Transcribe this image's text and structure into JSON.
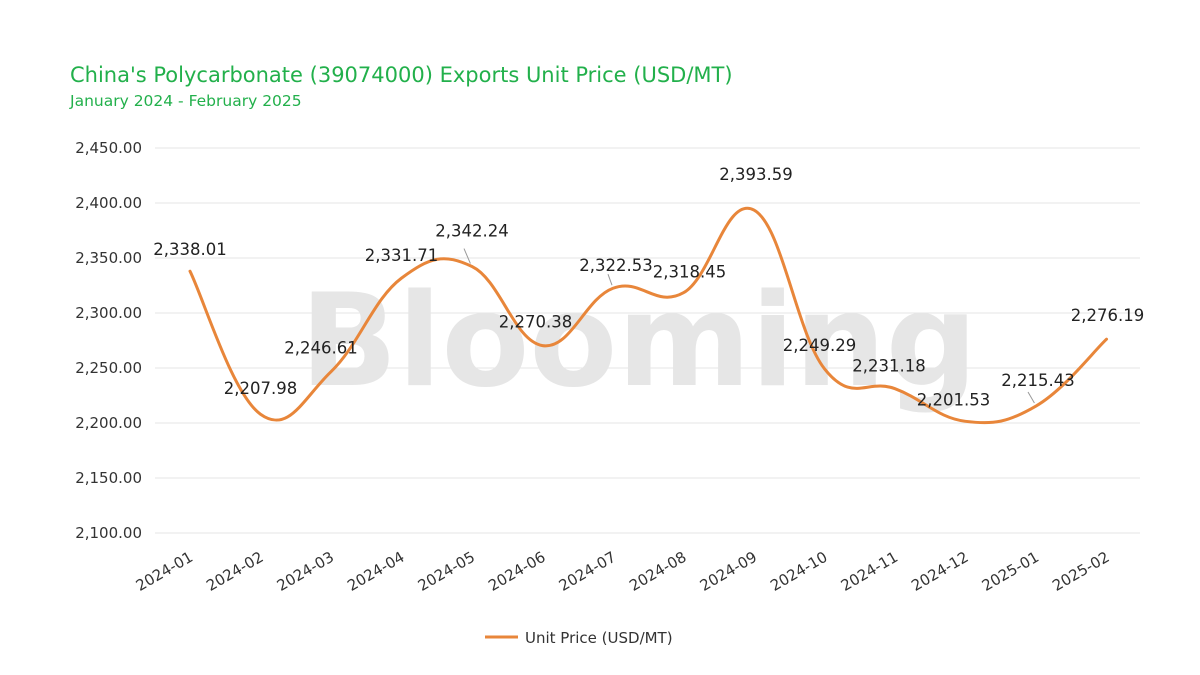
{
  "chart_data": {
    "type": "line",
    "title": "China's Polycarbonate (39074000) Exports Unit Price (USD/MT)",
    "subtitle": "January 2024 - February 2025",
    "categories": [
      "2024-01",
      "2024-02",
      "2024-03",
      "2024-04",
      "2024-05",
      "2024-06",
      "2024-07",
      "2024-08",
      "2024-09",
      "2024-10",
      "2024-11",
      "2024-12",
      "2025-01",
      "2025-02"
    ],
    "series": [
      {
        "name": "Unit Price (USD/MT)",
        "values": [
          2338.01,
          2207.98,
          2246.61,
          2331.71,
          2342.24,
          2270.38,
          2322.53,
          2318.45,
          2393.59,
          2249.29,
          2231.18,
          2201.53,
          2215.43,
          2276.19
        ],
        "labels": [
          "2,338.01",
          "2,207.98",
          "2,246.61",
          "2,331.71",
          "2,342.24",
          "2,270.38",
          "2,322.53",
          "2,318.45",
          "2,393.59",
          "2,249.29",
          "2,231.18",
          "2,201.53",
          "2,215.43",
          "2,276.19"
        ],
        "color": "#e8863a"
      }
    ],
    "ylim": [
      2100,
      2450
    ],
    "yticks": [
      "2,100.00",
      "2,150.00",
      "2,200.00",
      "2,250.00",
      "2,300.00",
      "2,350.00",
      "2,400.00",
      "2,450.00"
    ],
    "ytick_values": [
      2100,
      2150,
      2200,
      2250,
      2300,
      2350,
      2400,
      2450
    ],
    "grid": true,
    "legend": "bottom-center",
    "watermark": "Blooming",
    "colors": {
      "title": "#22b04b",
      "grid": "#e6e6e6",
      "line": "#e8863a"
    }
  }
}
